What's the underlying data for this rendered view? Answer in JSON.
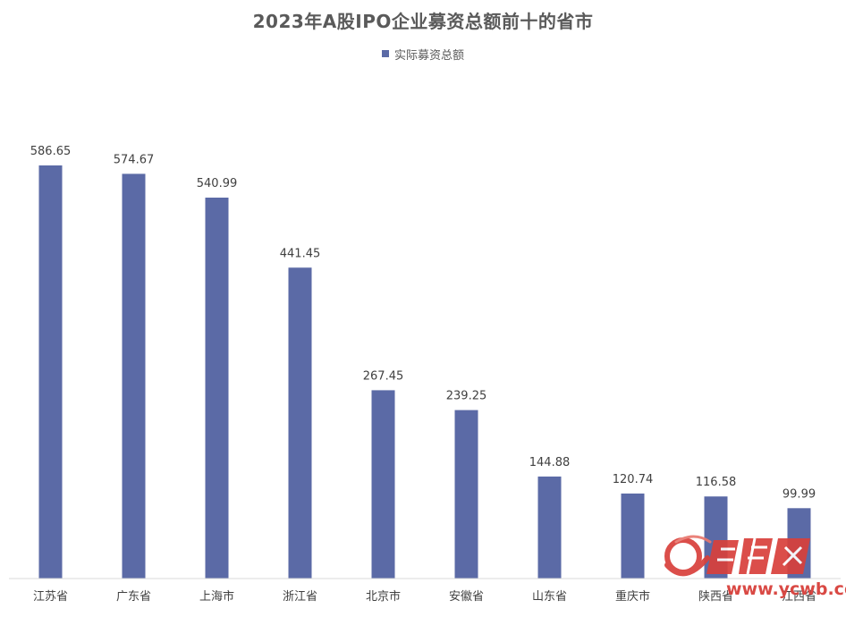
{
  "chart_data": {
    "type": "bar",
    "title": "2023年A股IPO企业募资总额前十的省市",
    "legend": {
      "entries": [
        "实际募资总额"
      ],
      "placement": "top-center"
    },
    "categories": [
      "江苏省",
      "广东省",
      "上海市",
      "浙江省",
      "北京市",
      "安徽省",
      "山东省",
      "重庆市",
      "陕西省",
      "江西省"
    ],
    "series": [
      {
        "name": "实际募资总额",
        "values": [
          586.65,
          574.67,
          540.99,
          441.45,
          267.45,
          239.25,
          144.88,
          120.74,
          116.58,
          99.99
        ],
        "data_labels": [
          "586.65",
          "574.67",
          "540.99",
          "441.45",
          "267.45",
          "239.25",
          "144.88",
          "120.74",
          "116.58",
          "99.99"
        ]
      }
    ],
    "xlabel": "",
    "ylabel": "",
    "ylim": [
      0,
      700
    ],
    "grid": false,
    "colors": {
      "bar": "#5b6aa6",
      "watermark": "#d8403b"
    }
  },
  "watermark": {
    "brand": "金羊网",
    "url": "www.ycwb.com"
  }
}
